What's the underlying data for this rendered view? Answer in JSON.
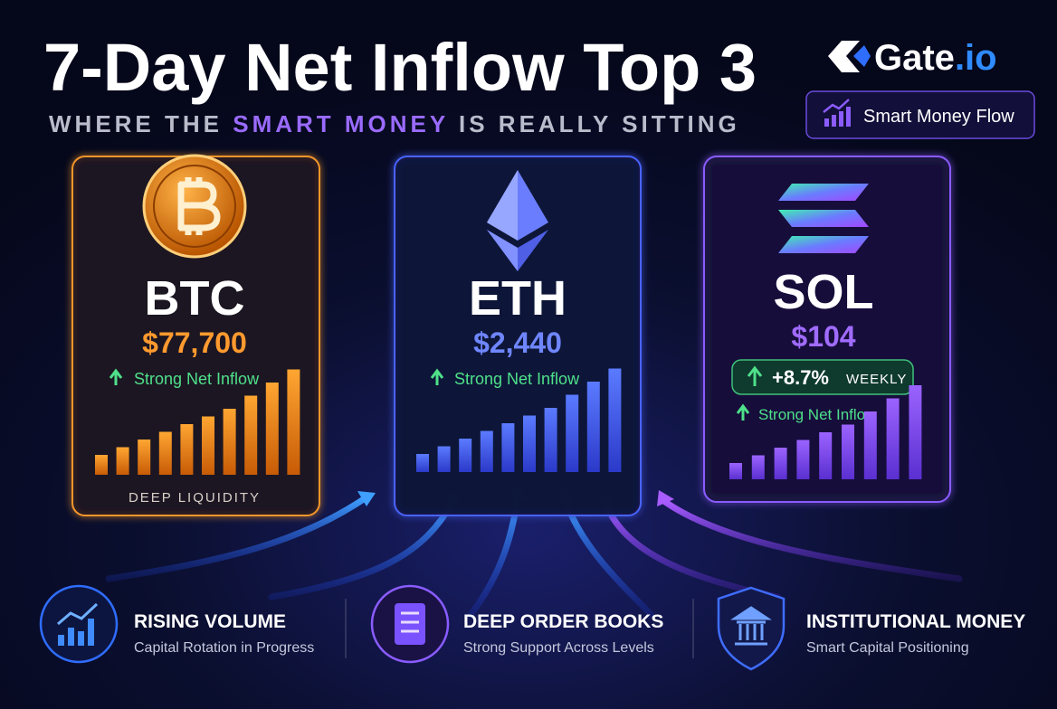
{
  "header": {
    "title": "7-Day Net Inflow Top 3",
    "subtitle": {
      "before": "WHERE THE",
      "highlight": "SMART MONEY",
      "after": "IS REALLY SITTING"
    },
    "brand": {
      "name": "Gate",
      "suffix": ".io"
    },
    "badge": "Smart Money Flow"
  },
  "cards": [
    {
      "symbol": "BTC",
      "price": "$77,700",
      "status": "Strong Net Inflow",
      "footer": "DEEP LIQUIDITY"
    },
    {
      "symbol": "ETH",
      "price": "$2,440",
      "status": "Strong Net Inflow"
    },
    {
      "symbol": "SOL",
      "price": "$104",
      "change": "+8.7%",
      "change_period": "WEEKLY",
      "status": "Strong Net Inflow"
    }
  ],
  "features": [
    {
      "title": "RISING VOLUME",
      "subtitle": "Capital Rotation in Progress"
    },
    {
      "title": "DEEP ORDER BOOKS",
      "subtitle": "Strong Support Across Levels"
    },
    {
      "title": "INSTITUTIONAL MONEY",
      "subtitle": "Smart Capital Positioning"
    }
  ]
}
